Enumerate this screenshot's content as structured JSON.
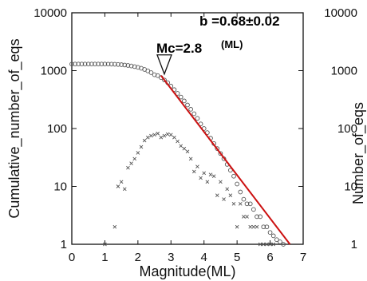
{
  "chart_data": {
    "type": "scatter",
    "title": "",
    "xlabel": "Magnitude(ML)",
    "ylabel_left": "Cumulative_number_of_eqs",
    "ylabel_right": "Number_of_eqs",
    "xlim": [
      0,
      7
    ],
    "ylim": [
      1,
      10000
    ],
    "yscale": "log",
    "x_ticks": [
      "0",
      "1",
      "2",
      "3",
      "4",
      "5",
      "6",
      "7"
    ],
    "y_ticks": [
      "1",
      "10",
      "100",
      "1000",
      "10000"
    ],
    "annotations": {
      "b_value": "b =0.68±0.02",
      "mc_main": "Mc=2.8",
      "mc_unit": "(ML)"
    },
    "mc_marker": {
      "x": 2.8,
      "y": 820,
      "shape": "inverted-triangle"
    },
    "fit_line": {
      "x": [
        2.7,
        6.6
      ],
      "y": [
        820,
        1
      ],
      "color": "#cc1111"
    },
    "series": [
      {
        "marker": "circle",
        "color": "#555555",
        "x": [
          0.0,
          0.1,
          0.2,
          0.3,
          0.4,
          0.5,
          0.6,
          0.7,
          0.8,
          0.9,
          1.0,
          1.1,
          1.2,
          1.3,
          1.4,
          1.5,
          1.6,
          1.7,
          1.8,
          1.9,
          2.0,
          2.1,
          2.2,
          2.3,
          2.4,
          2.5,
          2.6,
          2.7,
          2.8,
          2.9,
          3.0,
          3.1,
          3.2,
          3.3,
          3.4,
          3.5,
          3.6,
          3.7,
          3.8,
          3.9,
          4.0,
          4.1,
          4.2,
          4.3,
          4.4,
          4.5,
          4.6,
          4.7,
          4.8,
          4.9,
          5.0,
          5.1,
          5.2,
          5.3,
          5.4,
          5.5,
          5.6,
          5.7,
          5.8,
          5.9,
          6.0,
          6.1,
          6.2,
          6.3,
          6.4
        ],
        "y": [
          1300,
          1300,
          1300,
          1300,
          1300,
          1300,
          1300,
          1300,
          1300,
          1300,
          1300,
          1298,
          1295,
          1290,
          1280,
          1268,
          1252,
          1230,
          1205,
          1175,
          1140,
          1100,
          1050,
          990,
          925,
          850,
          820,
          760,
          690,
          620,
          540,
          470,
          405,
          350,
          300,
          255,
          215,
          180,
          150,
          120,
          100,
          85,
          68,
          55,
          45,
          37,
          30,
          24,
          19,
          15,
          11,
          8,
          6,
          5,
          5,
          4,
          3,
          3,
          2,
          2,
          1.6,
          1.4,
          1.2,
          1.1,
          1
        ]
      },
      {
        "marker": "cross",
        "color": "#555555",
        "x": [
          1.0,
          1.3,
          1.4,
          1.5,
          1.6,
          1.7,
          1.8,
          1.9,
          2.0,
          2.1,
          2.2,
          2.3,
          2.4,
          2.5,
          2.6,
          2.7,
          2.8,
          2.9,
          3.0,
          3.1,
          3.2,
          3.3,
          3.4,
          3.5,
          3.6,
          3.7,
          3.8,
          3.9,
          4.0,
          4.1,
          4.2,
          4.3,
          4.4,
          4.5,
          4.6,
          4.7,
          4.8,
          4.9,
          5.0,
          5.1,
          5.2,
          5.3,
          5.4,
          5.5,
          5.6,
          5.7,
          5.8,
          5.9,
          6.0,
          6.1
        ],
        "y": [
          1,
          2,
          10,
          12,
          9,
          21,
          25,
          30,
          38,
          48,
          62,
          70,
          75,
          78,
          82,
          70,
          75,
          80,
          78,
          70,
          60,
          50,
          45,
          40,
          30,
          18,
          22,
          14,
          17,
          12,
          16,
          15,
          7,
          12,
          6,
          9,
          7,
          5,
          2,
          5,
          3,
          3,
          2,
          2,
          2,
          1,
          1,
          1,
          1,
          1
        ]
      }
    ]
  }
}
